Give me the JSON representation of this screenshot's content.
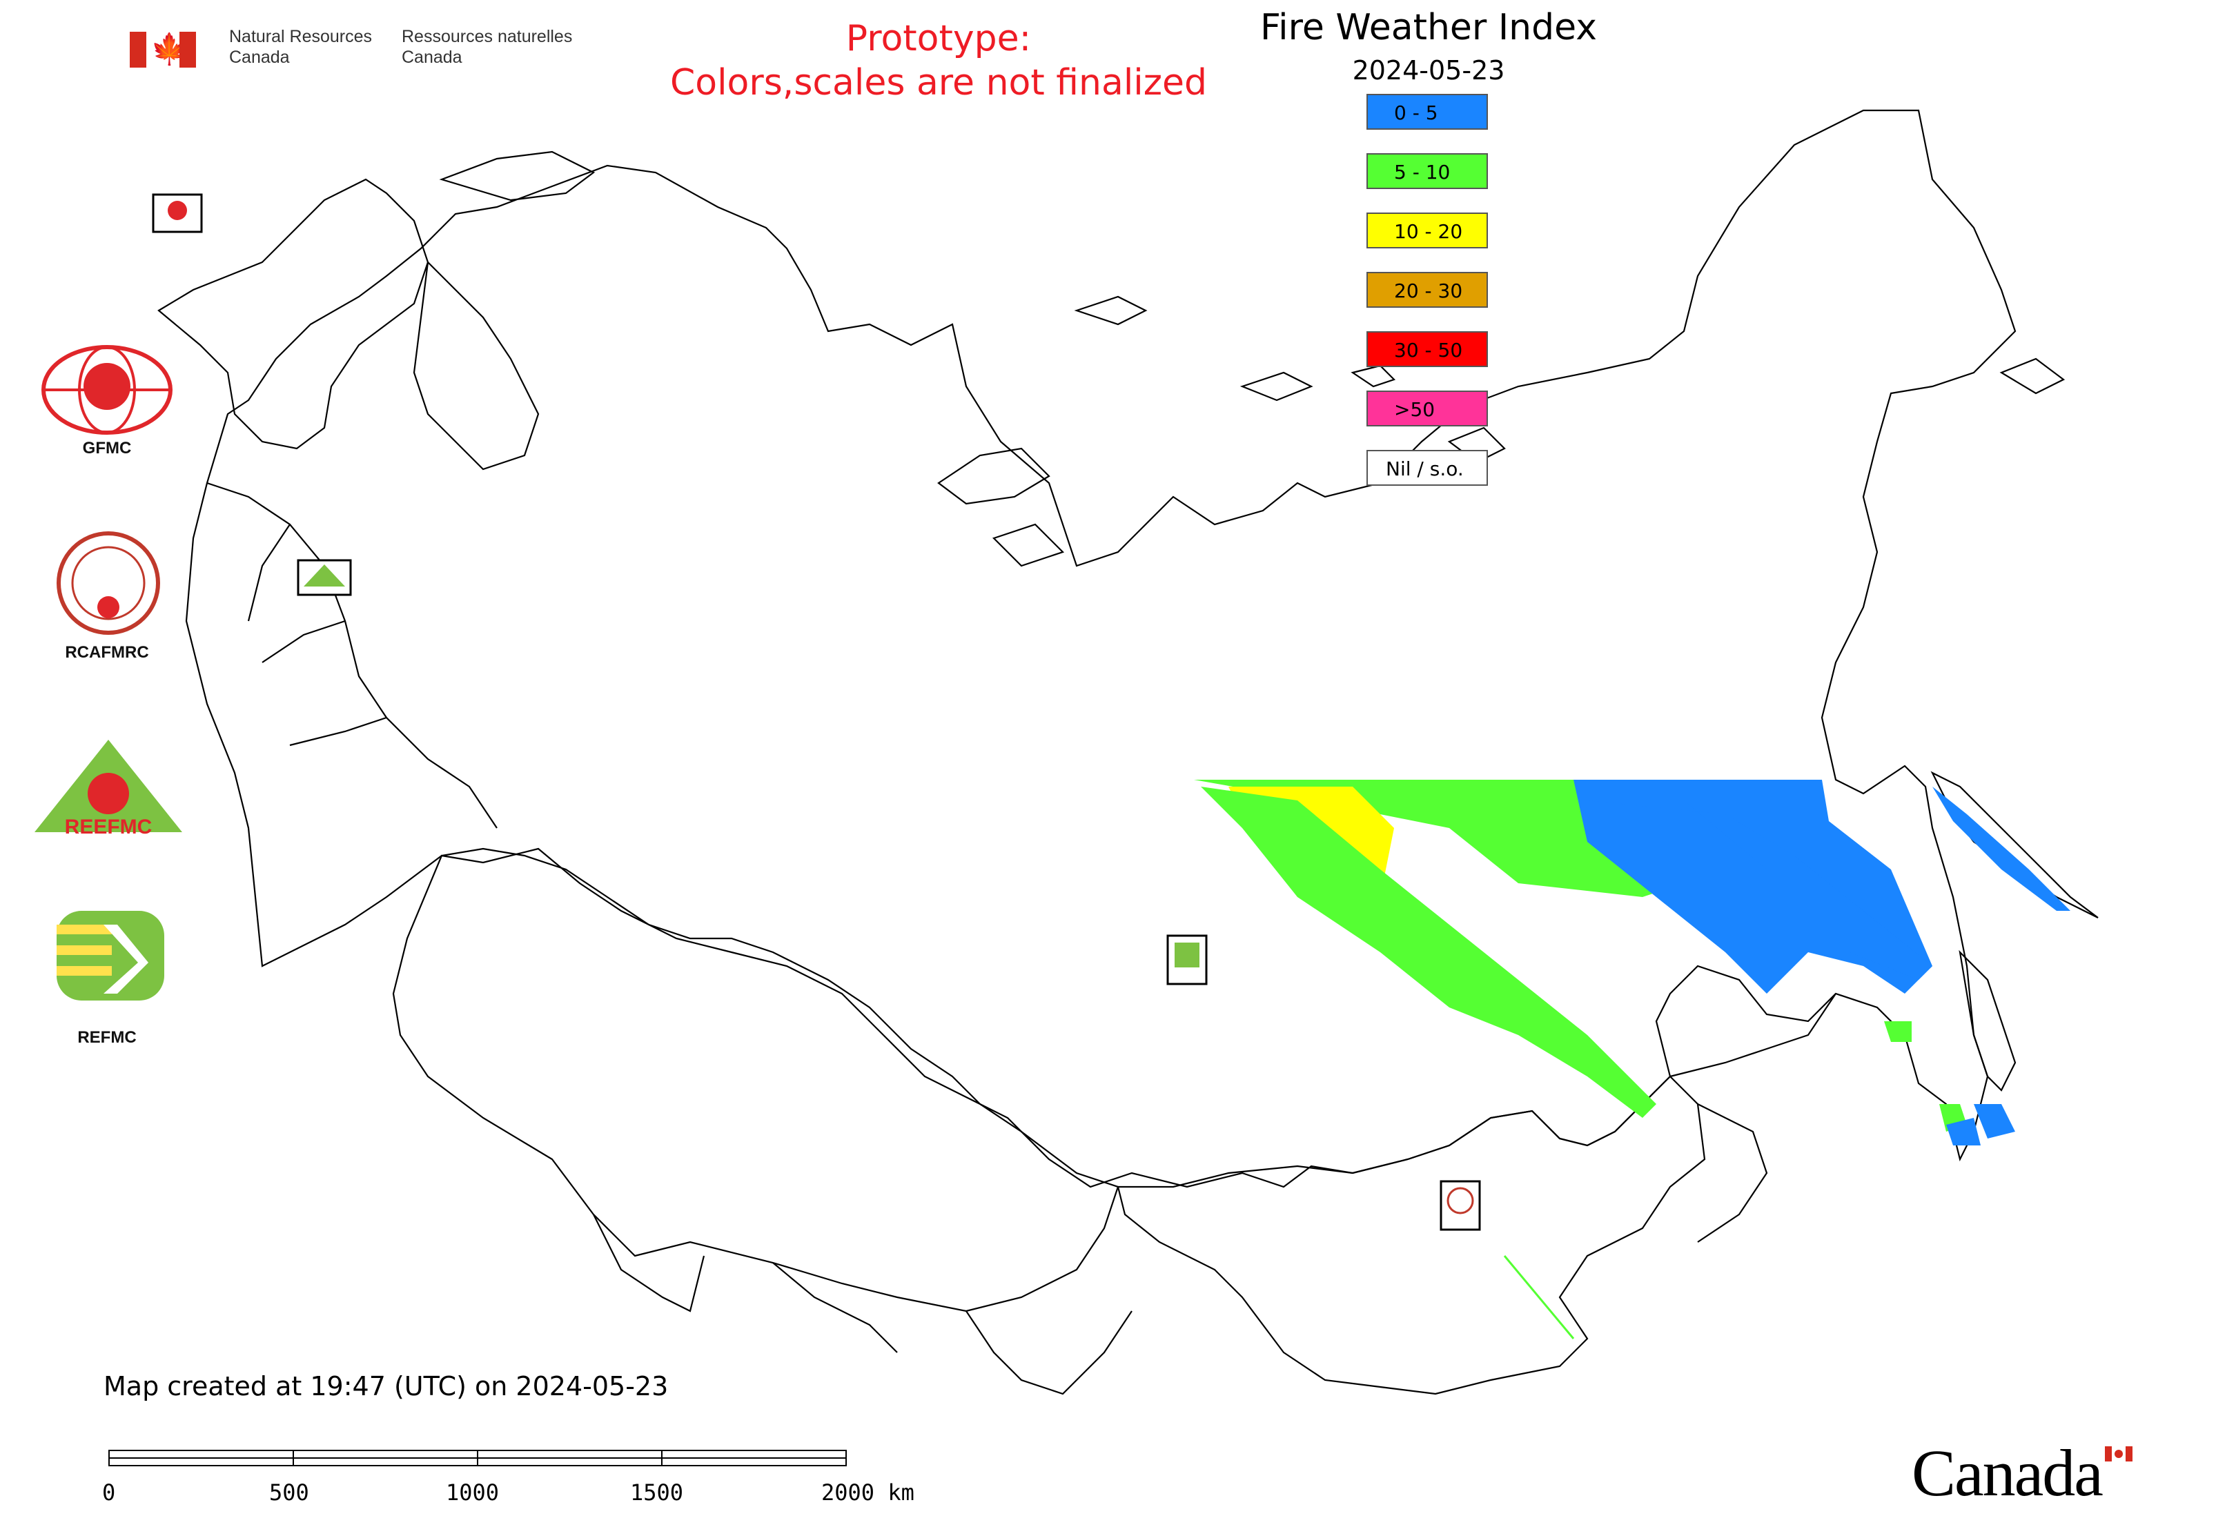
{
  "header": {
    "agency_en": [
      "Natural Resources",
      "Canada"
    ],
    "agency_fr": [
      "Ressources naturelles",
      "Canada"
    ],
    "prototype_line1": "Prototype:",
    "prototype_line2": "Colors,scales are not finalized",
    "title": "Fire Weather Index",
    "date": "2024-05-23"
  },
  "legend": {
    "items": [
      {
        "label": "0 - 5",
        "color": "#1a85ff"
      },
      {
        "label": "5 - 10",
        "color": "#55ff33"
      },
      {
        "label": "10 - 20",
        "color": "#ffff00"
      },
      {
        "label": "20 - 30",
        "color": "#e09f00"
      },
      {
        "label": "30 - 50",
        "color": "#ff0000"
      },
      {
        "label": ">50",
        "color": "#ff3399"
      },
      {
        "label": "Nil / s.o.",
        "color": "#ffffff"
      }
    ]
  },
  "logos": {
    "gfmc": "GFMC",
    "rcafmrc": "RCAFMRC",
    "reefmc": "REEFMC",
    "refmc": "REFMC"
  },
  "footer": {
    "created": "Map created at 19:47 (UTC) on 2024-05-23",
    "scale_labels": [
      "0",
      "500",
      "1000",
      "1500",
      "2000 km"
    ],
    "wordmark": "Canada"
  }
}
